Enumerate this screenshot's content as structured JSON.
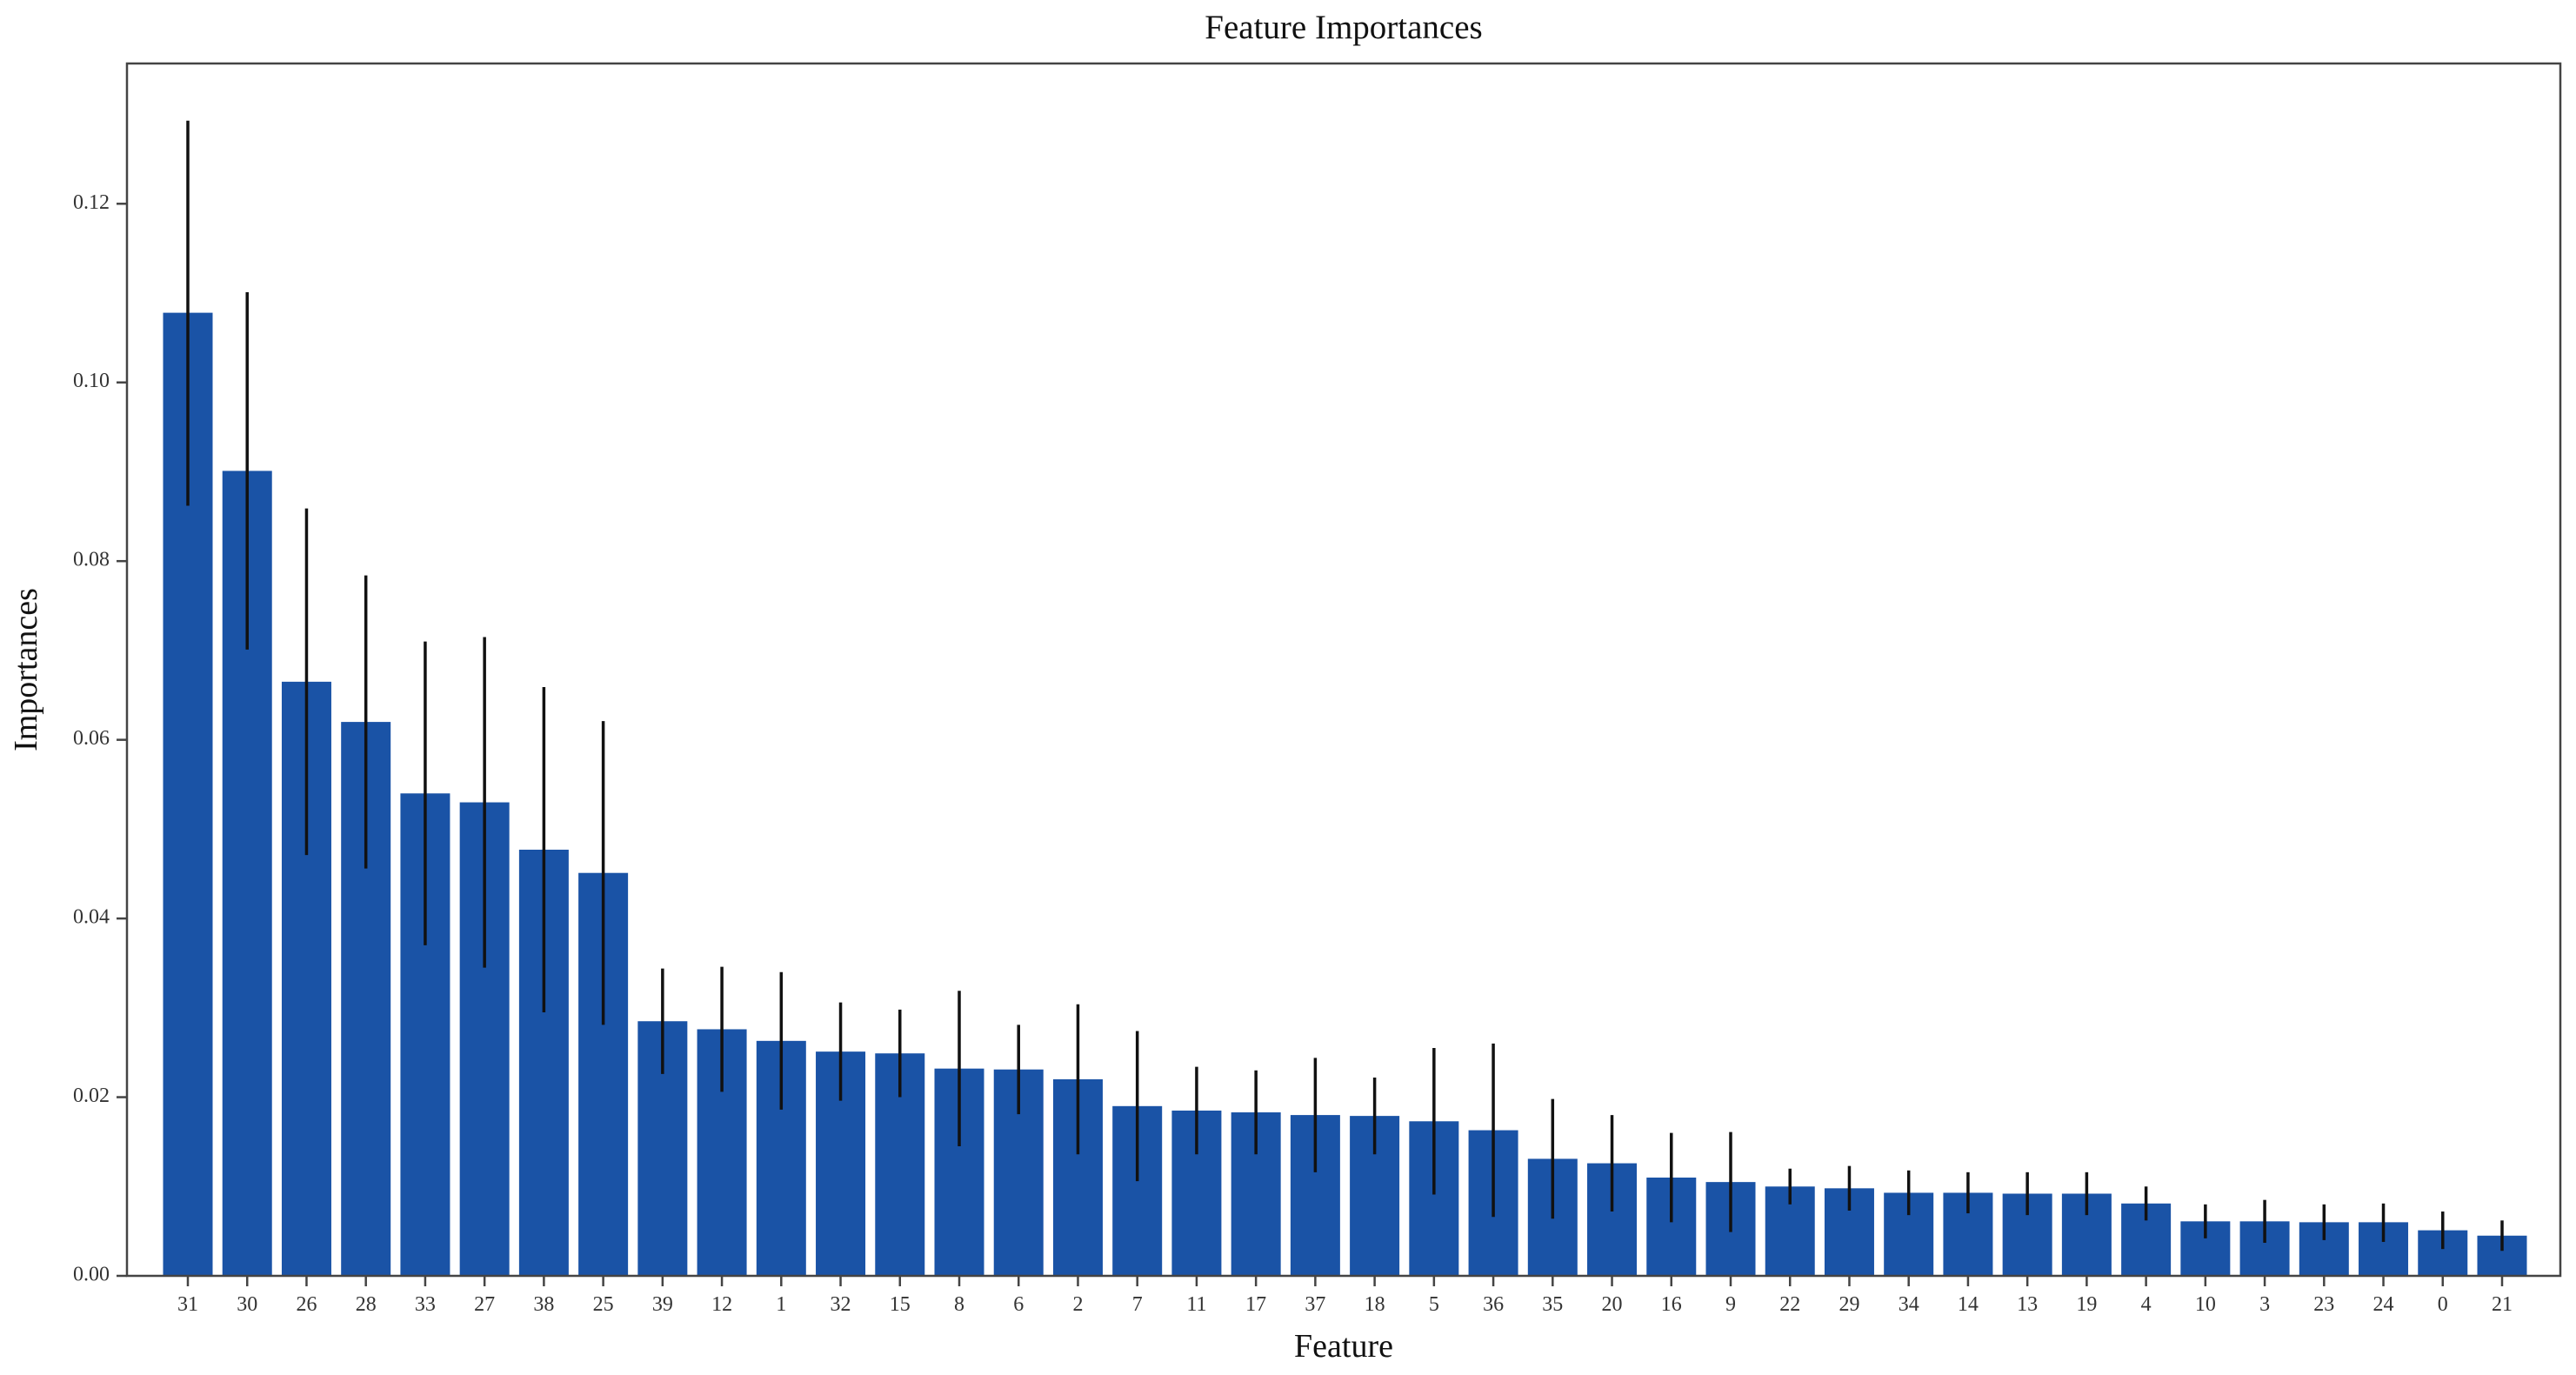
{
  "page": {
    "background": "#ffffff"
  },
  "chart_data": {
    "type": "bar",
    "title": "Feature Importances",
    "xlabel": "Feature",
    "ylabel": "Importances",
    "legend_position": "none",
    "grid": false,
    "categories": [
      "31",
      "30",
      "26",
      "28",
      "33",
      "27",
      "38",
      "25",
      "39",
      "12",
      "1",
      "32",
      "15",
      "8",
      "6",
      "2",
      "7",
      "11",
      "17",
      "37",
      "18",
      "5",
      "36",
      "35",
      "20",
      "16",
      "9",
      "22",
      "29",
      "34",
      "14",
      "13",
      "19",
      "4",
      "10",
      "3",
      "23",
      "24",
      "0",
      "21"
    ],
    "values": [
      0.1078,
      0.0901,
      0.0665,
      0.062,
      0.054,
      0.053,
      0.0477,
      0.0451,
      0.0285,
      0.0276,
      0.0263,
      0.0251,
      0.0249,
      0.0232,
      0.0231,
      0.022,
      0.019,
      0.0185,
      0.0183,
      0.018,
      0.0179,
      0.0173,
      0.0163,
      0.0131,
      0.0126,
      0.011,
      0.0105,
      0.01,
      0.0098,
      0.0093,
      0.0093,
      0.0092,
      0.0092,
      0.0081,
      0.0061,
      0.0061,
      0.006,
      0.006,
      0.0051,
      0.0045
    ],
    "error_low": [
      0.0862,
      0.0701,
      0.0471,
      0.0456,
      0.037,
      0.0345,
      0.0295,
      0.0281,
      0.0226,
      0.0206,
      0.0186,
      0.0196,
      0.02,
      0.0145,
      0.0181,
      0.0136,
      0.0106,
      0.0136,
      0.0136,
      0.0116,
      0.0136,
      0.0091,
      0.0066,
      0.0064,
      0.0072,
      0.006,
      0.0049,
      0.008,
      0.0073,
      0.0068,
      0.007,
      0.0068,
      0.0068,
      0.0062,
      0.0042,
      0.0037,
      0.004,
      0.0038,
      0.003,
      0.0028
    ],
    "error_high": [
      0.1293,
      0.1101,
      0.0859,
      0.0784,
      0.071,
      0.0715,
      0.0659,
      0.0621,
      0.0344,
      0.0346,
      0.034,
      0.0306,
      0.0298,
      0.0319,
      0.0281,
      0.0304,
      0.0274,
      0.0234,
      0.023,
      0.0244,
      0.0222,
      0.0255,
      0.026,
      0.0198,
      0.018,
      0.016,
      0.0161,
      0.012,
      0.0123,
      0.0118,
      0.0116,
      0.0116,
      0.0116,
      0.01,
      0.008,
      0.0085,
      0.008,
      0.0081,
      0.0072,
      0.0062
    ],
    "yticks": [
      0.0,
      0.02,
      0.04,
      0.06,
      0.08,
      0.1,
      0.12
    ],
    "ytick_labels": [
      "0.00",
      "0.02",
      "0.04",
      "0.06",
      "0.08",
      "0.10",
      "0.12"
    ],
    "ylim": [
      0,
      0.1357
    ],
    "bar_color": "#1a53a6",
    "error_color": "#111111",
    "axis_color": "#444444",
    "tick_label_color": "#333333"
  }
}
